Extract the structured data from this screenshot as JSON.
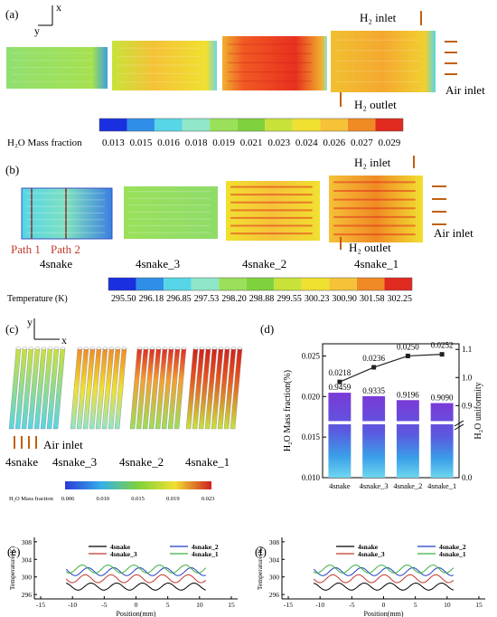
{
  "panel_a": {
    "label": "(a)",
    "axis_x": "x",
    "axis_y": "y",
    "h2_inlet": "H₂ inlet",
    "h2_outlet": "H₂ outlet",
    "air_inlet": "Air inlet",
    "colorbar_title": "H₂O Mass fraction",
    "colorbar_ticks": [
      "0.013",
      "0.015",
      "0.016",
      "0.018",
      "0.019",
      "0.021",
      "0.023",
      "0.024",
      "0.026",
      "0.027",
      "0.029"
    ],
    "colorbar_colors": [
      "#1a2fe0",
      "#2f8fe8",
      "#56d6e6",
      "#8fe6c8",
      "#9ae05a",
      "#7fd23c",
      "#c8e23a",
      "#f0e030",
      "#f5c238",
      "#f08a24",
      "#e02a20"
    ]
  },
  "panel_b": {
    "label": "(b)",
    "h2_inlet": "H₂ inlet",
    "h2_outlet": "H₂ outlet",
    "air_inlet": "Air inlet",
    "path1": "Path 1",
    "path2": "Path 2",
    "names": [
      "4snake",
      "4snake_3",
      "4snake_2",
      "4snake_1"
    ],
    "colorbar_title": "Temperature (K)",
    "colorbar_ticks": [
      "295.50",
      "296.18",
      "296.85",
      "297.53",
      "298.20",
      "298.88",
      "299.55",
      "300.23",
      "300.90",
      "301.58",
      "302.25"
    ],
    "colorbar_colors": [
      "#1a2fe0",
      "#2f8fe8",
      "#56d6e6",
      "#8fe6c8",
      "#9ae05a",
      "#7fd23c",
      "#c8e23a",
      "#f0e030",
      "#f5c238",
      "#f08a24",
      "#e02a20"
    ]
  },
  "panel_c": {
    "label": "(c)",
    "axis_x": "x",
    "axis_y": "y",
    "air_inlet": "Air inlet",
    "names": [
      "4snake",
      "4snake_3",
      "4snake_2",
      "4snake_1"
    ],
    "colorbar_title": "H₂O Mass fraction",
    "colorbar_ticks": [
      "0.006",
      "0.010",
      "0.015",
      "0.019",
      "0.023"
    ]
  },
  "chart_data": [
    {
      "id": "d",
      "type": "bar",
      "panel_label": "(d)",
      "categories": [
        "4snake",
        "4snake_3",
        "4snake_2",
        "4snake_1"
      ],
      "series": [
        {
          "values": [
            0.0218,
            0.0236,
            0.025,
            0.0252
          ],
          "labels": [
            "0.0218",
            "0.0236",
            "0.0250",
            "0.0252"
          ],
          "kind": "line",
          "axis": "left"
        },
        {
          "values": [
            0.9459,
            0.9335,
            0.9196,
            0.909
          ],
          "labels": [
            "0.9459",
            "0.9335",
            "0.9196",
            "0.9090"
          ],
          "kind": "bar",
          "axis": "right"
        }
      ],
      "ylabel": "H₂O Mass fraction(%)",
      "y2label": "H₂O uniformity",
      "ylim": [
        0.01,
        0.0265
      ],
      "yticks": [
        "0.010",
        "0.015",
        "0.020",
        "0.025"
      ],
      "y2ticks": [
        "0.0",
        "0.9",
        "1.0",
        "1.1"
      ],
      "y2lim_upper": [
        0.84,
        1.12
      ],
      "axis_break": true
    },
    {
      "id": "e",
      "type": "line",
      "panel_label": "(e)",
      "xlabel": "Position(mm)",
      "ylabel": "Temperature(K)",
      "xlim": [
        -16,
        16
      ],
      "ylim": [
        295,
        309
      ],
      "xticks": [
        "-15",
        "-10",
        "-5",
        "0",
        "5",
        "10",
        "15"
      ],
      "yticks": [
        "296",
        "300",
        "304",
        "308"
      ],
      "series": [
        {
          "name": "4snake",
          "color": "#000000",
          "base": 297.8,
          "amp": 0.8
        },
        {
          "name": "4snake_2",
          "color": "#1f3fbf",
          "base": 301.2,
          "amp": 0.9
        },
        {
          "name": "4snake_3",
          "color": "#c0392b",
          "base": 299.6,
          "amp": 0.9
        },
        {
          "name": "4snake_1",
          "color": "#3cb043",
          "base": 301.8,
          "amp": 0.9
        }
      ]
    },
    {
      "id": "f",
      "type": "line",
      "panel_label": "(f)",
      "xlabel": "Position(mm)",
      "ylabel": "Temperature(K)",
      "xlim": [
        -16,
        16
      ],
      "ylim": [
        295,
        309
      ],
      "xticks": [
        "-15",
        "-10",
        "-5",
        "0",
        "5",
        "10",
        "15"
      ],
      "yticks": [
        "296",
        "300",
        "304",
        "308"
      ],
      "series": [
        {
          "name": "4snake",
          "color": "#000000",
          "base": 297.8,
          "amp": 0.8
        },
        {
          "name": "4snake_2",
          "color": "#1f3fbf",
          "base": 301.2,
          "amp": 0.9
        },
        {
          "name": "4snake_3",
          "color": "#c0392b",
          "base": 299.6,
          "amp": 0.9
        },
        {
          "name": "4snake_1",
          "color": "#3cb043",
          "base": 301.8,
          "amp": 0.9
        }
      ]
    }
  ]
}
